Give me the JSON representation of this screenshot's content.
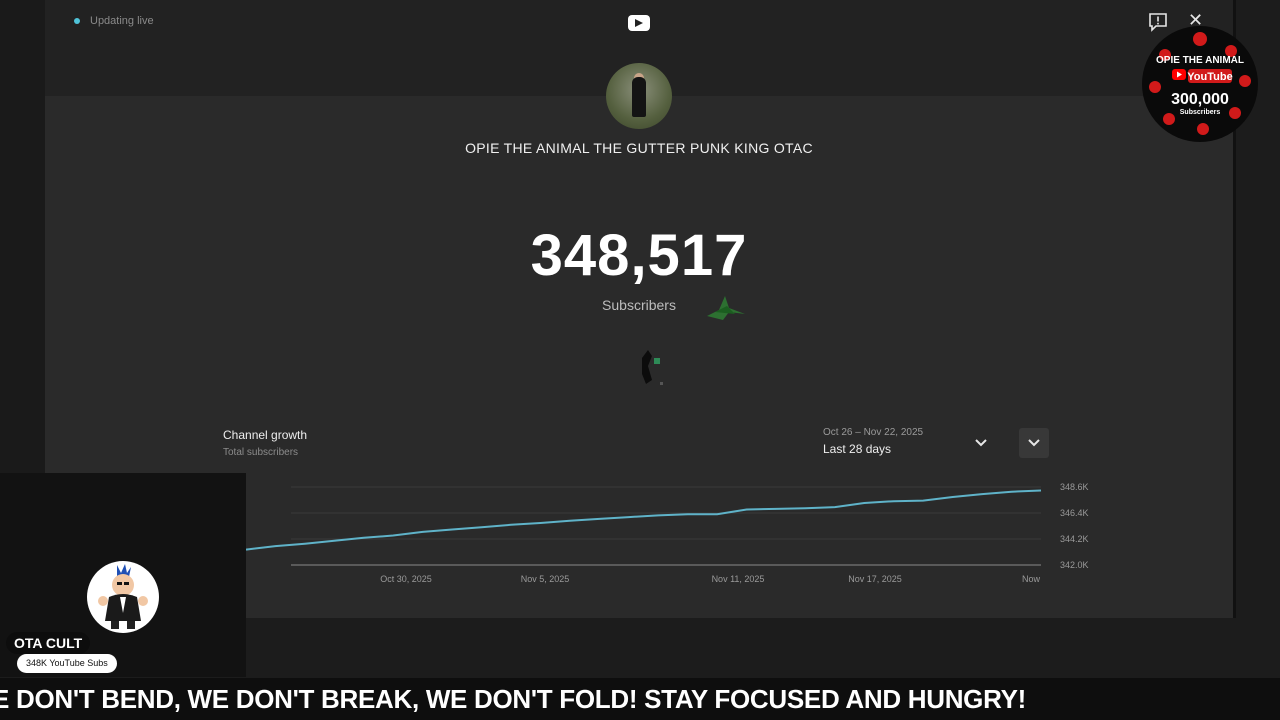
{
  "header": {
    "live_text": "Updating live"
  },
  "channel": {
    "name": "OPIE THE ANIMAL THE GUTTER PUNK KING OTAC",
    "subscriber_count": "348,517",
    "subscriber_label": "Subscribers"
  },
  "growth": {
    "title": "Channel growth",
    "subtitle": "Total subscribers",
    "range_dates": "Oct 26 – Nov 22, 2025",
    "range_label": "Last 28 days"
  },
  "chart_data": {
    "type": "line",
    "x_ticks": [
      "Oct 30, 2025",
      "Nov 5, 2025",
      "Nov 11, 2025",
      "Nov 17, 2025",
      "Now"
    ],
    "y_ticks": [
      "348.6K",
      "346.4K",
      "344.2K",
      "342.0K"
    ],
    "ylim": [
      342.0,
      348.6
    ],
    "series": [
      {
        "values": [
          343.3,
          343.6,
          343.8,
          344.05,
          344.3,
          344.5,
          344.8,
          345.0,
          345.2,
          345.4,
          345.55,
          345.75,
          345.9,
          346.05,
          346.2,
          346.3,
          346.3,
          346.7,
          346.75,
          346.8,
          346.9,
          347.25,
          347.4,
          347.45,
          347.75,
          348.0,
          348.2,
          348.3
        ]
      }
    ],
    "color": "#5fb3c9",
    "grid": true
  },
  "overlay": {
    "name_tag": "OTA CULT",
    "subs_pill": "348K YouTube Subs",
    "badge_title": "OPIE THE ANIMAL",
    "badge_youtube": "YouTube",
    "badge_count": "300,000",
    "badge_label": "Subscribers"
  },
  "ticker": {
    "text": "E DON'T BEND, WE DON'T BREAK, WE DON'T FOLD! STAY FOCUSED AND HUNGRY!"
  },
  "colors": {
    "accent": "#4fc3d9",
    "line": "#5fb3c9",
    "badge_red": "#d11a1a"
  }
}
